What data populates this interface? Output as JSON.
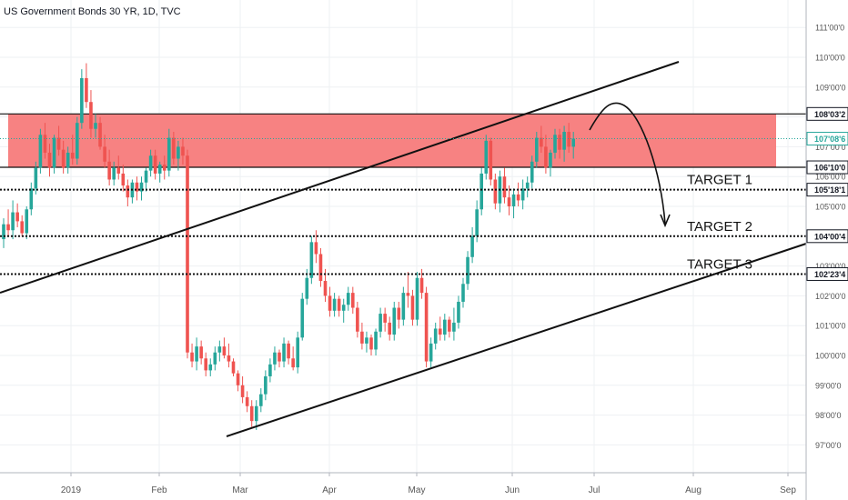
{
  "chart_data": {
    "type": "candlestick",
    "title": "US Government Bonds 30 YR, 1D, TVC",
    "x_tick_labels": [
      "2019",
      "Feb",
      "Mar",
      "Apr",
      "May",
      "Jun",
      "Jul",
      "Aug",
      "Sep"
    ],
    "y_tick_labels": [
      "97'00'0",
      "98'00'0",
      "99'00'0",
      "100'00'0",
      "101'00'0",
      "102'00'0",
      "103'00'0",
      "104'00'0",
      "105'00'0",
      "106'00'0",
      "107'00'0",
      "108'00'0",
      "109'00'0",
      "110'00'0",
      "111'00'0"
    ],
    "ylim": [
      96.5,
      111.3
    ],
    "colors": {
      "up": "#26a69a",
      "down": "#ef5350",
      "zone_fill": "#f77b7b",
      "current_price": "#26a69a",
      "level_tag": "#131722"
    },
    "price_labels": [
      {
        "text": "108'03'2",
        "value": 108.1
      },
      {
        "text": "107'08'6",
        "value": 107.27,
        "current": true
      },
      {
        "text": "106'10'0",
        "value": 106.31
      },
      {
        "text": "105'18'1",
        "value": 105.56
      },
      {
        "text": "104'00'4",
        "value": 104.0
      },
      {
        "text": "102'23'4",
        "value": 102.73
      }
    ],
    "resistance_zone": {
      "from": 106.31,
      "to": 108.1
    },
    "targets": [
      {
        "label": "TARGET 1",
        "value": 105.56
      },
      {
        "label": "TARGET 2",
        "value": 104.0
      },
      {
        "label": "TARGET 3",
        "value": 102.73
      }
    ],
    "ohlc": [
      [
        103.9,
        104.6,
        103.6,
        104.4
      ],
      [
        104.4,
        104.9,
        104.0,
        104.2
      ],
      [
        104.2,
        105.2,
        103.9,
        104.8
      ],
      [
        104.8,
        105.1,
        104.3,
        104.5
      ],
      [
        104.5,
        104.7,
        104.0,
        104.1
      ],
      [
        104.1,
        105.0,
        103.9,
        104.9
      ],
      [
        104.9,
        105.8,
        104.7,
        105.6
      ],
      [
        105.6,
        106.5,
        105.4,
        106.3
      ],
      [
        106.3,
        107.6,
        106.1,
        107.4
      ],
      [
        107.4,
        107.8,
        106.6,
        106.8
      ],
      [
        106.8,
        107.1,
        106.0,
        106.3
      ],
      [
        106.3,
        107.4,
        106.1,
        107.3
      ],
      [
        107.3,
        107.7,
        106.7,
        106.9
      ],
      [
        106.9,
        107.2,
        106.1,
        106.3
      ],
      [
        106.3,
        107.0,
        106.1,
        106.8
      ],
      [
        106.8,
        107.4,
        106.4,
        106.6
      ],
      [
        106.6,
        108.0,
        106.4,
        107.8
      ],
      [
        107.8,
        109.6,
        107.6,
        109.3
      ],
      [
        109.3,
        109.8,
        108.3,
        108.5
      ],
      [
        108.5,
        108.9,
        107.3,
        107.6
      ],
      [
        107.6,
        108.1,
        107.3,
        107.8
      ],
      [
        107.8,
        108.0,
        106.9,
        107.0
      ],
      [
        107.0,
        107.4,
        106.3,
        106.5
      ],
      [
        106.5,
        106.9,
        105.7,
        105.9
      ],
      [
        105.9,
        106.5,
        105.7,
        106.3
      ],
      [
        106.3,
        106.7,
        105.9,
        106.1
      ],
      [
        106.1,
        106.4,
        105.5,
        105.7
      ],
      [
        105.7,
        105.9,
        105.0,
        105.3
      ],
      [
        105.3,
        105.9,
        105.1,
        105.8
      ],
      [
        105.8,
        106.0,
        105.2,
        105.5
      ],
      [
        105.5,
        106.0,
        105.2,
        105.8
      ],
      [
        105.8,
        106.3,
        105.5,
        106.2
      ],
      [
        106.2,
        106.9,
        106.0,
        106.7
      ],
      [
        106.7,
        106.9,
        105.9,
        106.1
      ],
      [
        106.1,
        106.5,
        105.8,
        106.4
      ],
      [
        106.4,
        106.7,
        105.9,
        106.2
      ],
      [
        106.2,
        107.6,
        106.0,
        107.3
      ],
      [
        107.3,
        107.5,
        106.4,
        106.6
      ],
      [
        106.6,
        107.2,
        106.2,
        107.0
      ],
      [
        107.0,
        107.3,
        106.4,
        106.7
      ],
      [
        106.7,
        106.9,
        99.9,
        100.1
      ],
      [
        100.1,
        100.4,
        99.6,
        99.8
      ],
      [
        99.8,
        100.6,
        99.5,
        100.3
      ],
      [
        100.3,
        100.5,
        99.7,
        99.9
      ],
      [
        99.9,
        100.1,
        99.3,
        99.5
      ],
      [
        99.5,
        99.9,
        99.3,
        99.7
      ],
      [
        99.7,
        100.3,
        99.5,
        100.1
      ],
      [
        100.1,
        100.5,
        99.8,
        100.3
      ],
      [
        100.3,
        100.6,
        99.9,
        100.0
      ],
      [
        100.0,
        100.4,
        99.6,
        99.8
      ],
      [
        99.8,
        99.9,
        99.3,
        99.4
      ],
      [
        99.4,
        99.5,
        98.8,
        99.0
      ],
      [
        99.0,
        99.3,
        98.4,
        98.6
      ],
      [
        98.6,
        98.8,
        98.1,
        98.3
      ],
      [
        98.3,
        98.5,
        97.6,
        97.8
      ],
      [
        97.8,
        98.5,
        97.5,
        98.3
      ],
      [
        98.3,
        98.9,
        98.1,
        98.7
      ],
      [
        98.7,
        99.5,
        98.5,
        99.3
      ],
      [
        99.3,
        99.9,
        99.1,
        99.7
      ],
      [
        99.7,
        100.3,
        99.5,
        100.1
      ],
      [
        100.1,
        100.2,
        99.6,
        99.8
      ],
      [
        99.8,
        100.6,
        99.6,
        100.4
      ],
      [
        100.4,
        100.5,
        99.7,
        99.9
      ],
      [
        99.9,
        100.3,
        99.5,
        99.6
      ],
      [
        99.6,
        100.8,
        99.4,
        100.6
      ],
      [
        100.6,
        102.1,
        100.5,
        101.9
      ],
      [
        101.9,
        102.9,
        101.7,
        102.6
      ],
      [
        102.6,
        104.0,
        102.4,
        103.8
      ],
      [
        103.8,
        104.2,
        103.1,
        103.4
      ],
      [
        103.4,
        103.6,
        102.3,
        102.5
      ],
      [
        102.5,
        102.9,
        101.8,
        102.0
      ],
      [
        102.0,
        102.3,
        101.3,
        101.5
      ],
      [
        101.5,
        102.1,
        101.3,
        101.9
      ],
      [
        101.9,
        102.0,
        101.3,
        101.5
      ],
      [
        101.5,
        101.9,
        101.1,
        101.7
      ],
      [
        101.7,
        102.3,
        101.5,
        102.1
      ],
      [
        102.1,
        102.3,
        101.4,
        101.6
      ],
      [
        101.6,
        101.8,
        100.6,
        100.8
      ],
      [
        100.8,
        101.1,
        100.2,
        100.4
      ],
      [
        100.4,
        100.8,
        100.1,
        100.6
      ],
      [
        100.6,
        100.7,
        100.0,
        100.2
      ],
      [
        100.2,
        100.9,
        100.0,
        100.8
      ],
      [
        100.8,
        101.6,
        100.6,
        101.4
      ],
      [
        101.4,
        101.6,
        100.8,
        101.1
      ],
      [
        101.1,
        101.3,
        100.5,
        100.7
      ],
      [
        100.7,
        101.8,
        100.5,
        101.6
      ],
      [
        101.6,
        101.8,
        100.9,
        101.2
      ],
      [
        101.2,
        102.3,
        101.0,
        102.1
      ],
      [
        102.1,
        102.8,
        101.6,
        102.0
      ],
      [
        102.0,
        102.2,
        101.0,
        101.2
      ],
      [
        101.2,
        102.8,
        101.0,
        102.6
      ],
      [
        102.6,
        102.9,
        101.9,
        102.1
      ],
      [
        102.1,
        102.3,
        99.6,
        99.8
      ],
      [
        99.8,
        100.6,
        99.6,
        100.4
      ],
      [
        100.4,
        101.1,
        100.2,
        100.9
      ],
      [
        100.9,
        101.3,
        100.5,
        100.7
      ],
      [
        100.7,
        101.4,
        100.5,
        101.2
      ],
      [
        101.2,
        101.3,
        100.6,
        100.8
      ],
      [
        100.8,
        101.6,
        100.5,
        101.1
      ],
      [
        101.1,
        102.0,
        100.9,
        101.8
      ],
      [
        101.8,
        102.6,
        101.6,
        102.4
      ],
      [
        102.4,
        103.5,
        102.2,
        103.3
      ],
      [
        103.3,
        104.3,
        103.1,
        104.0
      ],
      [
        104.0,
        105.2,
        103.8,
        104.9
      ],
      [
        104.9,
        106.3,
        104.7,
        106.1
      ],
      [
        106.1,
        107.4,
        105.9,
        107.2
      ],
      [
        107.2,
        107.3,
        105.7,
        105.9
      ],
      [
        105.9,
        106.1,
        104.9,
        105.1
      ],
      [
        105.1,
        106.2,
        104.8,
        106.0
      ],
      [
        106.0,
        106.3,
        105.1,
        105.3
      ],
      [
        105.3,
        105.7,
        104.7,
        105.0
      ],
      [
        105.0,
        105.6,
        104.6,
        105.4
      ],
      [
        105.4,
        105.8,
        105.0,
        105.2
      ],
      [
        105.2,
        105.9,
        104.9,
        105.6
      ],
      [
        105.6,
        106.0,
        105.3,
        105.8
      ],
      [
        105.8,
        106.7,
        105.6,
        106.5
      ],
      [
        106.5,
        107.5,
        106.3,
        107.3
      ],
      [
        107.3,
        107.7,
        106.8,
        107.0
      ],
      [
        107.0,
        107.4,
        106.1,
        106.3
      ],
      [
        106.3,
        106.9,
        106.0,
        106.8
      ],
      [
        106.8,
        107.6,
        106.6,
        107.4
      ],
      [
        107.4,
        107.6,
        106.6,
        106.9
      ],
      [
        106.9,
        107.7,
        106.5,
        107.5
      ],
      [
        107.5,
        107.8,
        106.8,
        107.0
      ],
      [
        107.0,
        107.5,
        106.6,
        107.27
      ]
    ]
  }
}
